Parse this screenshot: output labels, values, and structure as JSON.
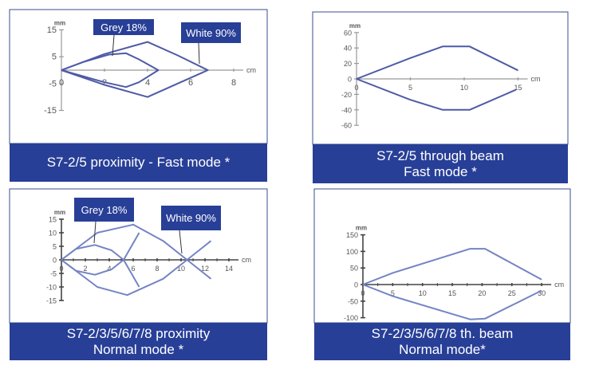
{
  "colors": {
    "caption_bg": "#283f97",
    "frame": "#3a4f8f",
    "curve": "#4e5aa6",
    "curve_light": "#7484c4",
    "axis": "#666666"
  },
  "chart_data": [
    {
      "type": "line",
      "caption": [
        "S7-2/5 proximity - Fast mode *"
      ],
      "xlabel": "cm",
      "ylabel": "mm",
      "xticks": [
        0,
        2,
        4,
        6,
        8
      ],
      "yticks": [
        15,
        5,
        -5,
        -15
      ],
      "xlim": [
        0,
        8
      ],
      "ylim": [
        -15,
        15
      ],
      "annotations": [
        "Grey 18%",
        "White 90%"
      ],
      "series": [
        {
          "name": "Grey 18%",
          "points": [
            [
              0,
              0
            ],
            [
              1,
              3
            ],
            [
              2.2,
              5.8
            ],
            [
              3,
              6.3
            ],
            [
              3.6,
              4
            ],
            [
              4.5,
              0
            ],
            [
              3.6,
              -4.5
            ],
            [
              3,
              -6.3
            ],
            [
              2,
              -4.5
            ],
            [
              0,
              0
            ]
          ]
        },
        {
          "name": "White 90%",
          "points": [
            [
              0,
              0
            ],
            [
              2,
              6
            ],
            [
              4,
              10.5
            ],
            [
              5.4,
              5.5
            ],
            [
              6.8,
              0
            ],
            [
              5.4,
              -5
            ],
            [
              4,
              -10
            ],
            [
              2,
              -5.5
            ],
            [
              0,
              0
            ]
          ]
        }
      ]
    },
    {
      "type": "line",
      "caption": [
        "S7-2/5 through beam",
        "Fast mode *"
      ],
      "xlabel": "cm",
      "ylabel": "mm",
      "xticks": [
        0,
        5,
        10,
        15
      ],
      "yticks": [
        60,
        40,
        20,
        0,
        -20,
        -40,
        -60
      ],
      "xlim": [
        0,
        15
      ],
      "ylim": [
        -60,
        60
      ],
      "series": [
        {
          "points": [
            [
              0,
              0
            ],
            [
              5,
              27
            ],
            [
              8,
              42
            ],
            [
              10.5,
              42
            ],
            [
              15,
              11
            ]
          ]
        },
        {
          "points": [
            [
              0,
              0
            ],
            [
              5,
              -27
            ],
            [
              8,
              -40
            ],
            [
              10.5,
              -40
            ],
            [
              14.8,
              -14
            ]
          ]
        }
      ]
    },
    {
      "type": "line",
      "caption": [
        "S7-2/3/5/6/7/8 proximity",
        "Normal mode *"
      ],
      "xlabel": "cm",
      "ylabel": "mm",
      "xticks": [
        0,
        2,
        4,
        6,
        8,
        10,
        12,
        14
      ],
      "yticks": [
        15,
        10,
        5,
        0,
        -5,
        -10,
        -15
      ],
      "xlim": [
        0,
        14
      ],
      "ylim": [
        -15,
        15
      ],
      "annotations": [
        "Grey 18%",
        "White 90%"
      ],
      "series": [
        {
          "name": "Grey 18%",
          "points": [
            [
              0,
              0
            ],
            [
              1.2,
              4
            ],
            [
              2.8,
              5.5
            ],
            [
              4.2,
              3.5
            ],
            [
              5.2,
              0
            ],
            [
              6.5,
              -10
            ]
          ]
        },
        {
          "name": "Grey 18%",
          "points": [
            [
              0,
              0
            ],
            [
              1.2,
              -4
            ],
            [
              2.8,
              -5.5
            ],
            [
              4.2,
              -3.5
            ],
            [
              5.2,
              0
            ],
            [
              6.5,
              10
            ]
          ]
        },
        {
          "name": "White 90%",
          "points": [
            [
              0,
              0
            ],
            [
              3,
              10
            ],
            [
              6,
              13
            ],
            [
              8.5,
              7
            ],
            [
              10.5,
              0
            ],
            [
              12.5,
              -7
            ]
          ]
        },
        {
          "name": "White 90%",
          "points": [
            [
              0,
              0
            ],
            [
              3,
              -10
            ],
            [
              5.5,
              -13
            ],
            [
              8.5,
              -7
            ],
            [
              10.5,
              0
            ],
            [
              12.5,
              7
            ]
          ]
        }
      ]
    },
    {
      "type": "line",
      "caption": [
        "S7-2/3/5/6/7/8 th. beam",
        "Normal mode*"
      ],
      "xlabel": "cm",
      "ylabel": "mm",
      "xticks": [
        0,
        5,
        10,
        15,
        20,
        25,
        30
      ],
      "yticks": [
        150,
        100,
        50,
        0,
        -50,
        -100
      ],
      "xlim": [
        0,
        30
      ],
      "ylim": [
        -100,
        150
      ],
      "series": [
        {
          "points": [
            [
              0,
              0
            ],
            [
              5,
              35
            ],
            [
              18,
              108
            ],
            [
              20.5,
              108
            ],
            [
              30,
              15
            ]
          ]
        },
        {
          "points": [
            [
              0,
              0
            ],
            [
              5,
              -35
            ],
            [
              18,
              -105
            ],
            [
              20.5,
              -103
            ],
            [
              30,
              -18
            ]
          ]
        }
      ]
    }
  ]
}
